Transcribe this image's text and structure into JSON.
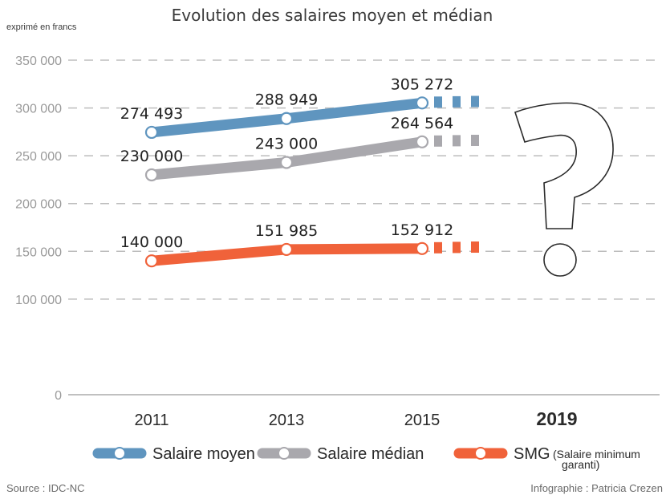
{
  "chart_data": {
    "type": "line",
    "title": "Evolution des salaires moyen et médian",
    "ylabel": "exprimé en francs",
    "xlabel": "",
    "categories": [
      "2011",
      "2013",
      "2015",
      "2019"
    ],
    "highlight_category": "2019",
    "ylim": [
      0,
      350000
    ],
    "yticks": [
      0,
      100000,
      150000,
      200000,
      250000,
      300000,
      350000
    ],
    "ytick_labels": [
      "0",
      "100 000",
      "150 000",
      "200 000",
      "250 000",
      "300 000",
      "350 000"
    ],
    "grid": true,
    "unknown_marker": "?",
    "series": [
      {
        "name": "Salaire moyen",
        "color": "#5f95bf",
        "values": [
          274493,
          288949,
          305272,
          null
        ],
        "labels": [
          "274 493",
          "288 949",
          "305 272"
        ],
        "projection": "dashed"
      },
      {
        "name": "Salaire médian",
        "color": "#a9a8ad",
        "values": [
          230000,
          243000,
          264564,
          null
        ],
        "labels": [
          "230 000",
          "243 000",
          "264 564"
        ],
        "projection": "dashed"
      },
      {
        "name": "SMG",
        "subname": "(Salaire minimum",
        "subname2": "garanti)",
        "color": "#f0623a",
        "values": [
          140000,
          151985,
          152912,
          null
        ],
        "labels": [
          "140 000",
          "151 985",
          "152 912"
        ],
        "projection": "dashed"
      }
    ],
    "legend": "bottom"
  },
  "footer": {
    "source": "Source : IDC-NC",
    "credit": "Infographie : Patricia Crezen"
  }
}
